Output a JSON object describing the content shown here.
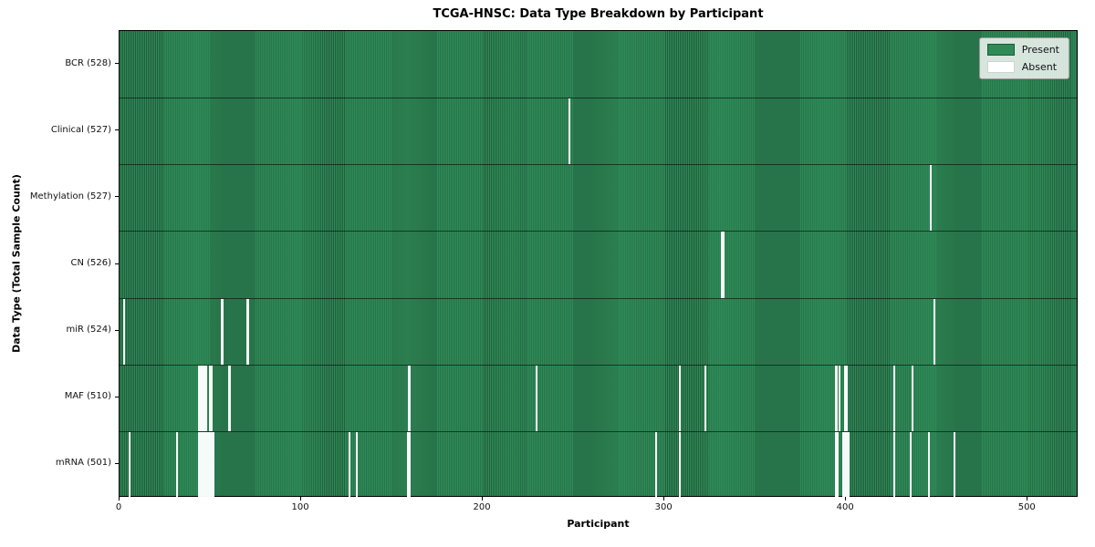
{
  "title": "TCGA-HNSC: Data Type Breakdown by Participant",
  "colors": {
    "present": "#2e8b57",
    "present_dark": "#225c3c",
    "absent": "#ffffff",
    "figure_bg": "#ffffff"
  },
  "chart_data": {
    "type": "heatmap",
    "title": "TCGA-HNSC: Data Type Breakdown by Participant",
    "xlabel": "Participant",
    "ylabel": "Data Type (Total Sample Count)",
    "n_participants": 528,
    "x_ticks": [
      0,
      100,
      200,
      300,
      400,
      500
    ],
    "legend_entries": [
      "Present",
      "Absent"
    ],
    "legend_position": "upper right",
    "grid": false,
    "rows": [
      {
        "label": "BCR",
        "count": 528,
        "absent": []
      },
      {
        "label": "Clinical",
        "count": 527,
        "absent": [
          247
        ]
      },
      {
        "label": "Methylation",
        "count": 527,
        "absent": [
          446
        ]
      },
      {
        "label": "CN",
        "count": 526,
        "absent": [
          331,
          332
        ]
      },
      {
        "label": "miR",
        "count": 524,
        "absent": [
          2,
          56,
          70,
          448
        ]
      },
      {
        "label": "MAF",
        "count": 510,
        "absent": [
          43,
          44,
          45,
          46,
          47,
          49,
          50,
          60,
          159,
          229,
          308,
          322,
          394,
          396,
          399,
          400,
          426,
          436
        ]
      },
      {
        "label": "mRNA",
        "count": 501,
        "absent": [
          5,
          31,
          43,
          44,
          45,
          46,
          47,
          48,
          49,
          50,
          51,
          126,
          130,
          158,
          159,
          295,
          308,
          394,
          395,
          398,
          399,
          400,
          401,
          426,
          435,
          445,
          459
        ]
      }
    ]
  }
}
